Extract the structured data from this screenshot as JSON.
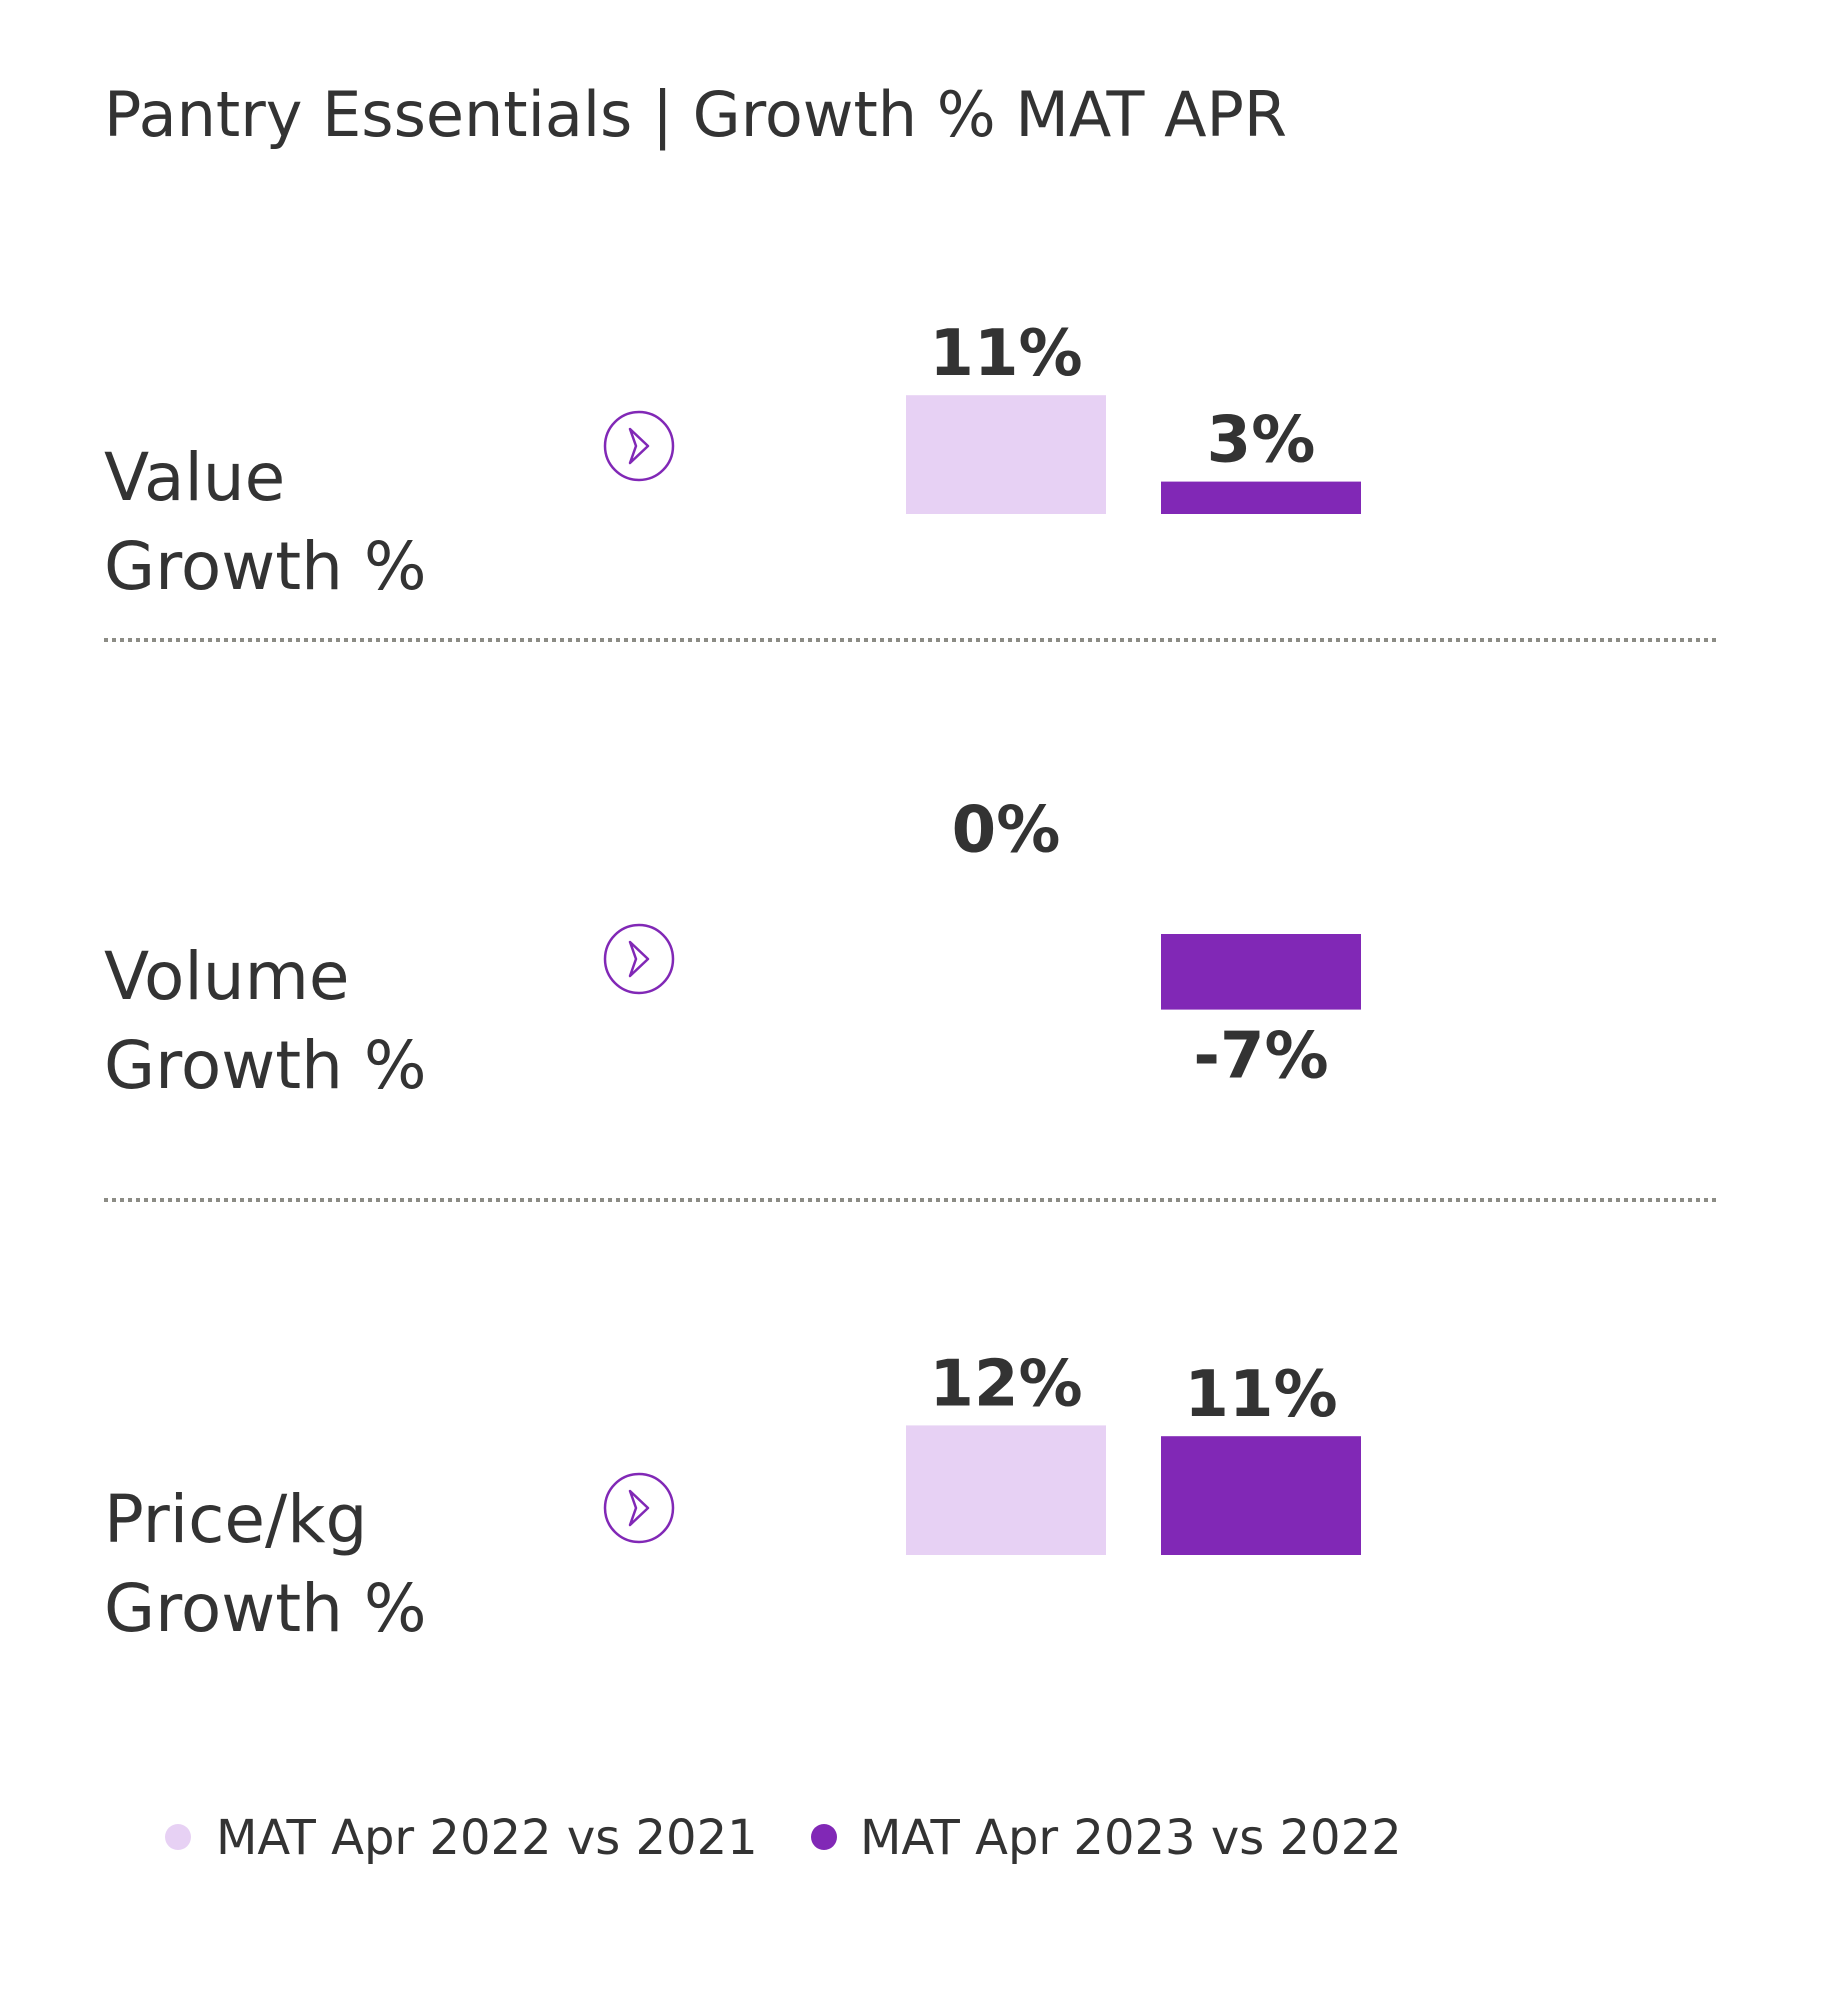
{
  "chart_data": {
    "type": "bar",
    "title": "Pantry Essentials | Growth % MAT APR",
    "legend_position": "bottom",
    "series": [
      {
        "name": "MAT Apr 2022 vs 2021",
        "color": "#e7d1f4"
      },
      {
        "name": "MAT Apr 2023 vs 2022",
        "color": "#8128b6"
      }
    ],
    "groups": [
      {
        "label_line1": "Value",
        "label_line2": "Growth %",
        "values": [
          11,
          3
        ],
        "labels": [
          "11%",
          "3%"
        ]
      },
      {
        "label_line1": "Volume",
        "label_line2": "Growth %",
        "values": [
          0,
          -7
        ],
        "labels": [
          "0%",
          "-7%"
        ]
      },
      {
        "label_line1": "Price/kg",
        "label_line2": "Growth %",
        "values": [
          12,
          11
        ],
        "labels": [
          "12%",
          "11%"
        ]
      }
    ],
    "icon": "chevron-right-circle-icon",
    "accent_color": "#8128b6",
    "divider_color": "#8c8c85"
  }
}
